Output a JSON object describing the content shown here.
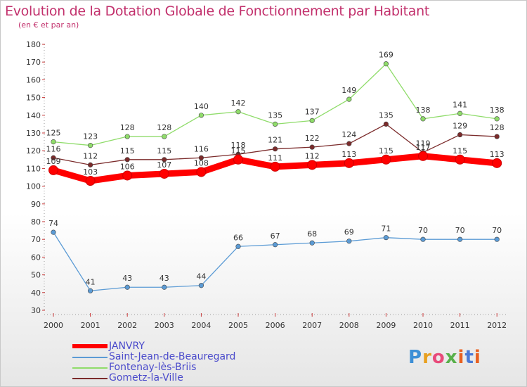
{
  "header": {
    "title": "Evolution de la Dotation Globale de Fonctionnement par Habitant",
    "subtitle": "(en € et par an)"
  },
  "logo": {
    "text": "Proxiti"
  },
  "chart_data": {
    "type": "line",
    "title": "Evolution de la Dotation Globale de Fonctionnement par Habitant",
    "subtitle": "(en € et par an)",
    "xlabel": "",
    "ylabel": "",
    "x": [
      "2000",
      "2001",
      "2002",
      "2003",
      "2004",
      "2005",
      "2006",
      "2007",
      "2008",
      "2009",
      "2010",
      "2011",
      "2012"
    ],
    "ylim": [
      30,
      180
    ],
    "yticks": [
      30,
      40,
      50,
      60,
      70,
      80,
      90,
      100,
      110,
      120,
      130,
      140,
      150,
      160,
      170,
      180
    ],
    "grid": false,
    "legend_position": "bottom-left",
    "series": [
      {
        "name": "JANVRY",
        "color": "#ff0000",
        "values": [
          109,
          103,
          106,
          107,
          108,
          115,
          111,
          112,
          113,
          115,
          117,
          115,
          113
        ]
      },
      {
        "name": "Saint-Jean-de-Beauregard",
        "color": "#5b9bd5",
        "values": [
          74,
          41,
          43,
          43,
          44,
          66,
          67,
          68,
          69,
          71,
          70,
          70,
          70
        ]
      },
      {
        "name": "Fontenay-lès-Briis",
        "color": "#8fdc6a",
        "values": [
          125,
          123,
          128,
          128,
          140,
          142,
          135,
          137,
          149,
          169,
          138,
          141,
          138
        ]
      },
      {
        "name": "Gometz-la-Ville",
        "color": "#7b2b2b",
        "values": [
          116,
          112,
          115,
          115,
          116,
          118,
          121,
          122,
          124,
          135,
          119,
          129,
          128
        ]
      }
    ]
  }
}
